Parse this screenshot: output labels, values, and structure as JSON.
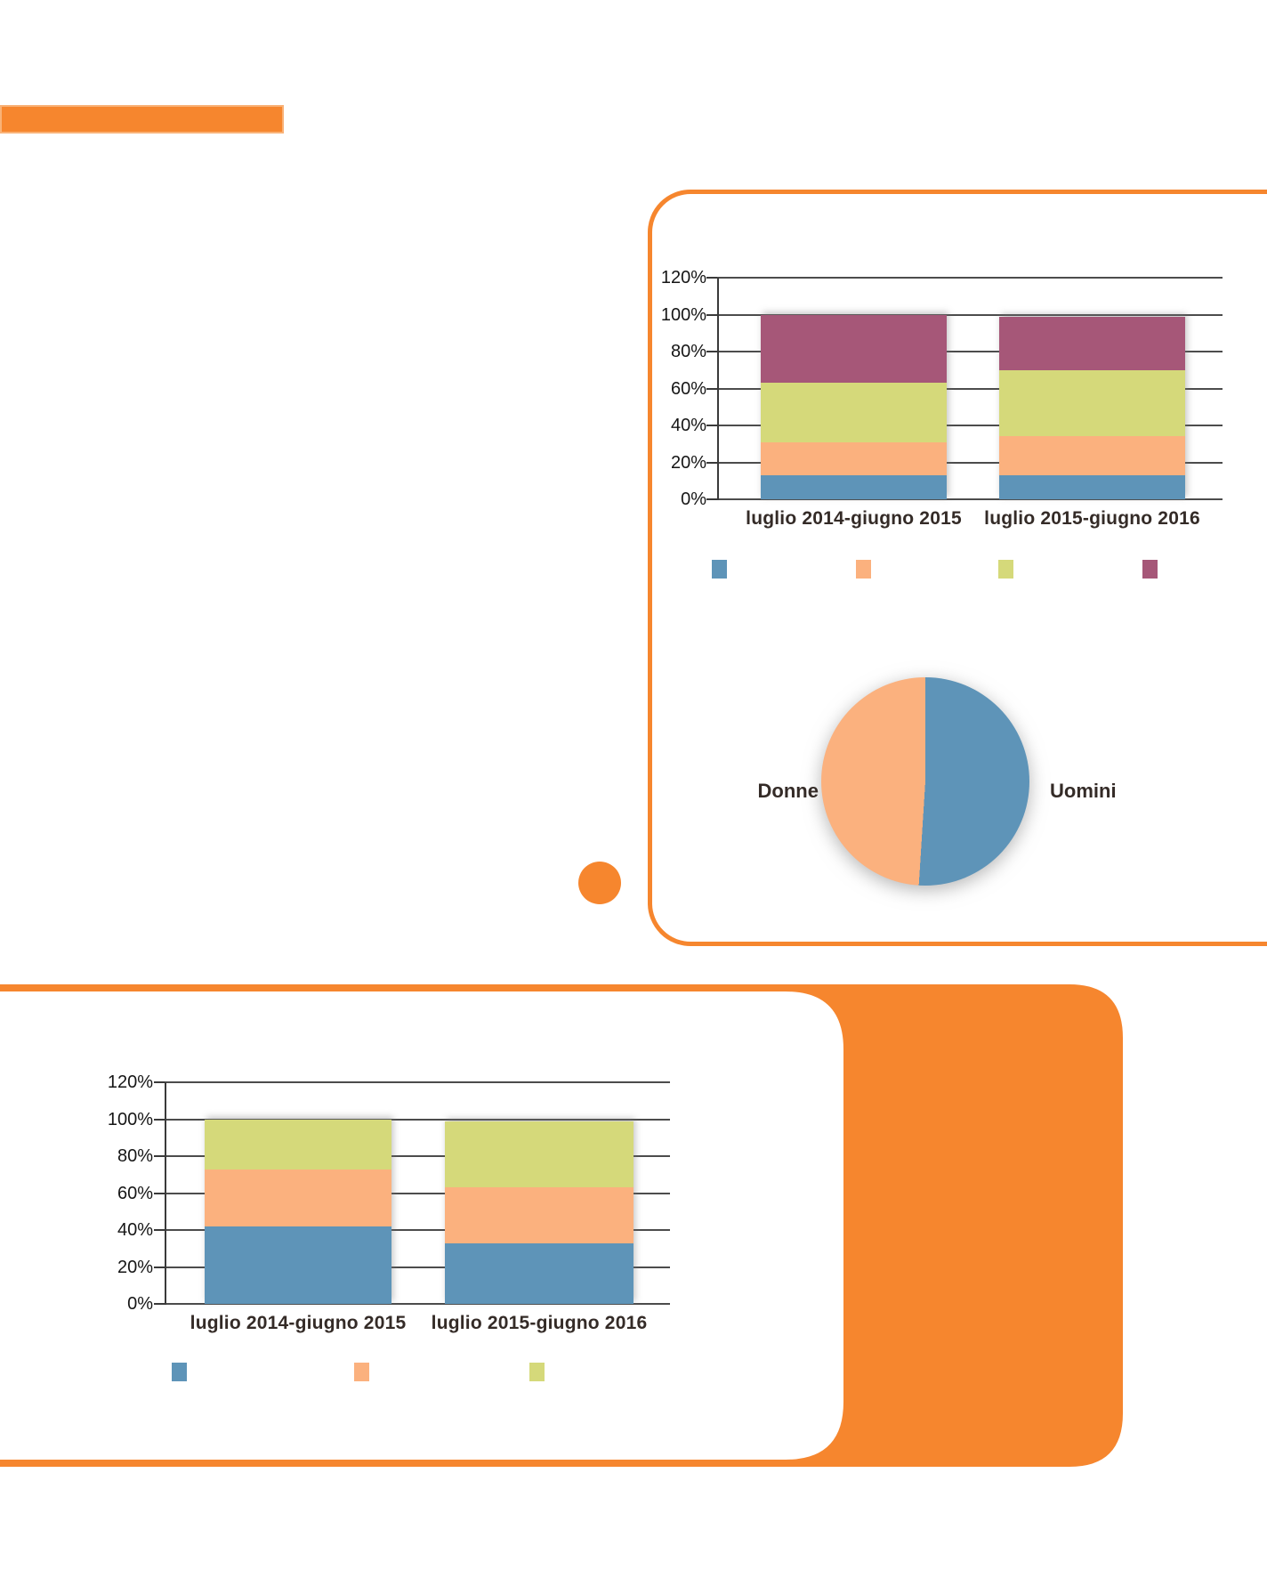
{
  "page": {
    "background": "#ffffff",
    "accent_orange": "#f6862e",
    "accent_orange_light": "#f9b277",
    "axis_color": "#3a3a3a",
    "grid_color": "#4c4c4c",
    "text_color": "#342b27"
  },
  "chart_data": [
    {
      "id": "stacked-bar-top",
      "type": "bar",
      "stacked": true,
      "categories": [
        "luglio 2014-giugno 2015",
        "luglio 2015-giugno 2016"
      ],
      "series": [
        {
          "color": "#5e94b8",
          "values": [
            13,
            13
          ]
        },
        {
          "color": "#fbb17e",
          "values": [
            18,
            21
          ]
        },
        {
          "color": "#d5d97a",
          "values": [
            32,
            36
          ]
        },
        {
          "color": "#a65778",
          "values": [
            37,
            29
          ]
        }
      ],
      "y_ticks": [
        "0%",
        "20%",
        "40%",
        "60%",
        "80%",
        "100%",
        "120%"
      ],
      "ylim": [
        0,
        120
      ],
      "grid": true,
      "legend_position": "bottom",
      "legend_swatches_only": true
    },
    {
      "id": "pie-gender",
      "type": "pie",
      "labels": [
        "Uomini",
        "Donne"
      ],
      "values": [
        51,
        49
      ],
      "colors": [
        "#5e94b8",
        "#fbb17e"
      ],
      "start_angle_deg": 0,
      "label_position": "sides"
    },
    {
      "id": "stacked-bar-bottom",
      "type": "bar",
      "stacked": true,
      "categories": [
        "luglio 2014-giugno 2015",
        "luglio 2015-giugno 2016"
      ],
      "series": [
        {
          "color": "#5e94b8",
          "values": [
            42,
            33
          ]
        },
        {
          "color": "#fbb17e",
          "values": [
            31,
            30
          ]
        },
        {
          "color": "#d5d97a",
          "values": [
            27,
            36
          ]
        }
      ],
      "y_ticks": [
        "0%",
        "20%",
        "40%",
        "60%",
        "80%",
        "100%",
        "120%"
      ],
      "ylim": [
        0,
        120
      ],
      "grid": true,
      "legend_position": "bottom",
      "legend_swatches_only": true
    }
  ]
}
